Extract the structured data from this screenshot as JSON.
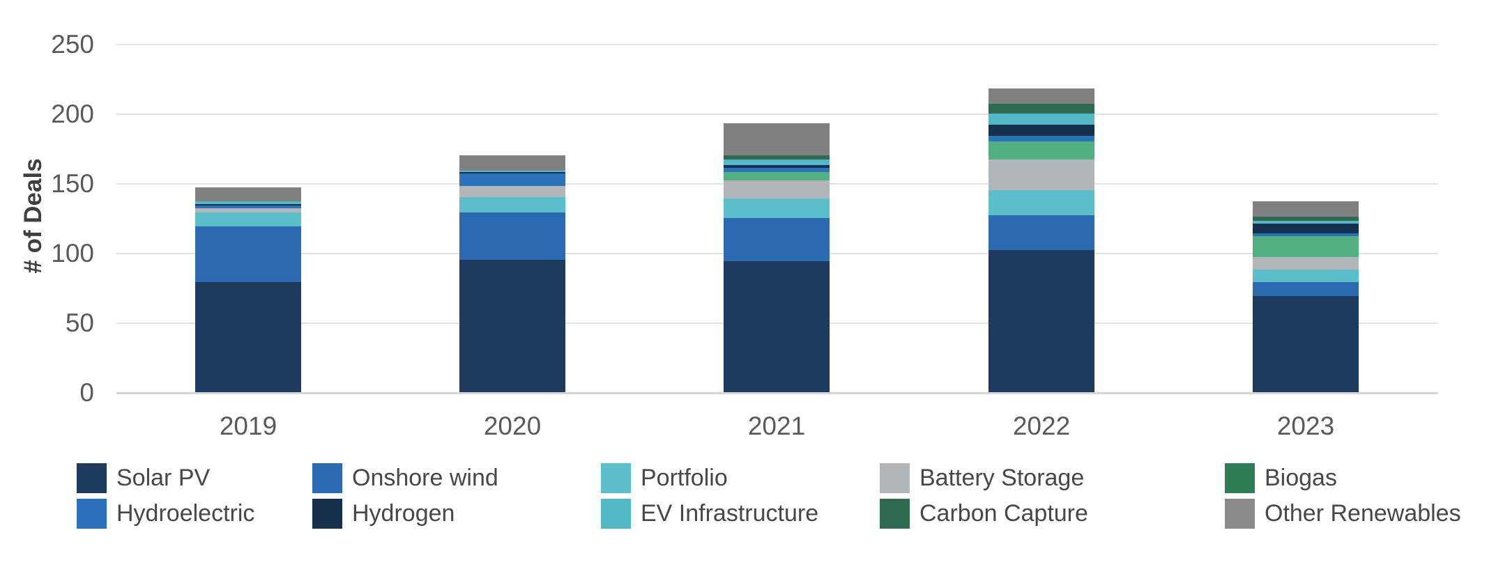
{
  "chart_data": {
    "type": "bar",
    "stacked": true,
    "title": "",
    "xlabel": "",
    "ylabel": "# of Deals",
    "ylim": [
      0,
      250
    ],
    "yticks": [
      0,
      50,
      100,
      150,
      200,
      250
    ],
    "grid": "horizontal",
    "legend_position": "bottom",
    "categories": [
      "2019",
      "2020",
      "2021",
      "2022",
      "2023"
    ],
    "series": [
      {
        "name": "Solar PV",
        "color": "#1F3A5F",
        "legend_color": "#1F3A5F",
        "values": [
          79,
          95,
          94,
          102,
          69
        ]
      },
      {
        "name": "Onshore wind",
        "color": "#2B6AB0",
        "legend_color": "#2B6AB0",
        "values": [
          40,
          34,
          31,
          25,
          10
        ]
      },
      {
        "name": "Portfolio",
        "color": "#5CBECB",
        "legend_color": "#5CBECB",
        "values": [
          10,
          11,
          14,
          18,
          9
        ]
      },
      {
        "name": "Battery Storage",
        "color": "#B3B6B8",
        "legend_color": "#B3B6B8",
        "values": [
          3,
          8,
          13,
          22,
          9
        ]
      },
      {
        "name": "Biogas",
        "color": "#53B081",
        "legend_color": "#2E7D55",
        "values": [
          0,
          0,
          6,
          13,
          15
        ]
      },
      {
        "name": "Hydroelectric",
        "color": "#2D70BC",
        "legend_color": "#2D70BC",
        "values": [
          2,
          9,
          3,
          4,
          2
        ]
      },
      {
        "name": "Hydrogen",
        "color": "#16304E",
        "legend_color": "#16304E",
        "values": [
          1,
          1,
          2,
          8,
          7
        ]
      },
      {
        "name": "EV Infrastructure",
        "color": "#55B8C6",
        "legend_color": "#55B8C6",
        "values": [
          2,
          1,
          4,
          8,
          2
        ]
      },
      {
        "name": "Carbon Capture",
        "color": "#2F6B50",
        "legend_color": "#2F6B50",
        "values": [
          0,
          0,
          3,
          7,
          3
        ]
      },
      {
        "name": "Other Renewables",
        "color": "#7F8080",
        "legend_color": "#8A8A8A",
        "values": [
          10,
          11,
          23,
          11,
          11
        ]
      }
    ],
    "totals": [
      147,
      170,
      193,
      218,
      137
    ],
    "legend_columns": [
      [
        "Solar PV",
        "Hydroelectric"
      ],
      [
        "Onshore wind",
        "Hydrogen"
      ],
      [
        "Portfolio",
        "EV Infrastructure"
      ],
      [
        "Battery Storage",
        "Carbon Capture"
      ],
      [
        "Biogas",
        "Other Renewables"
      ]
    ]
  }
}
